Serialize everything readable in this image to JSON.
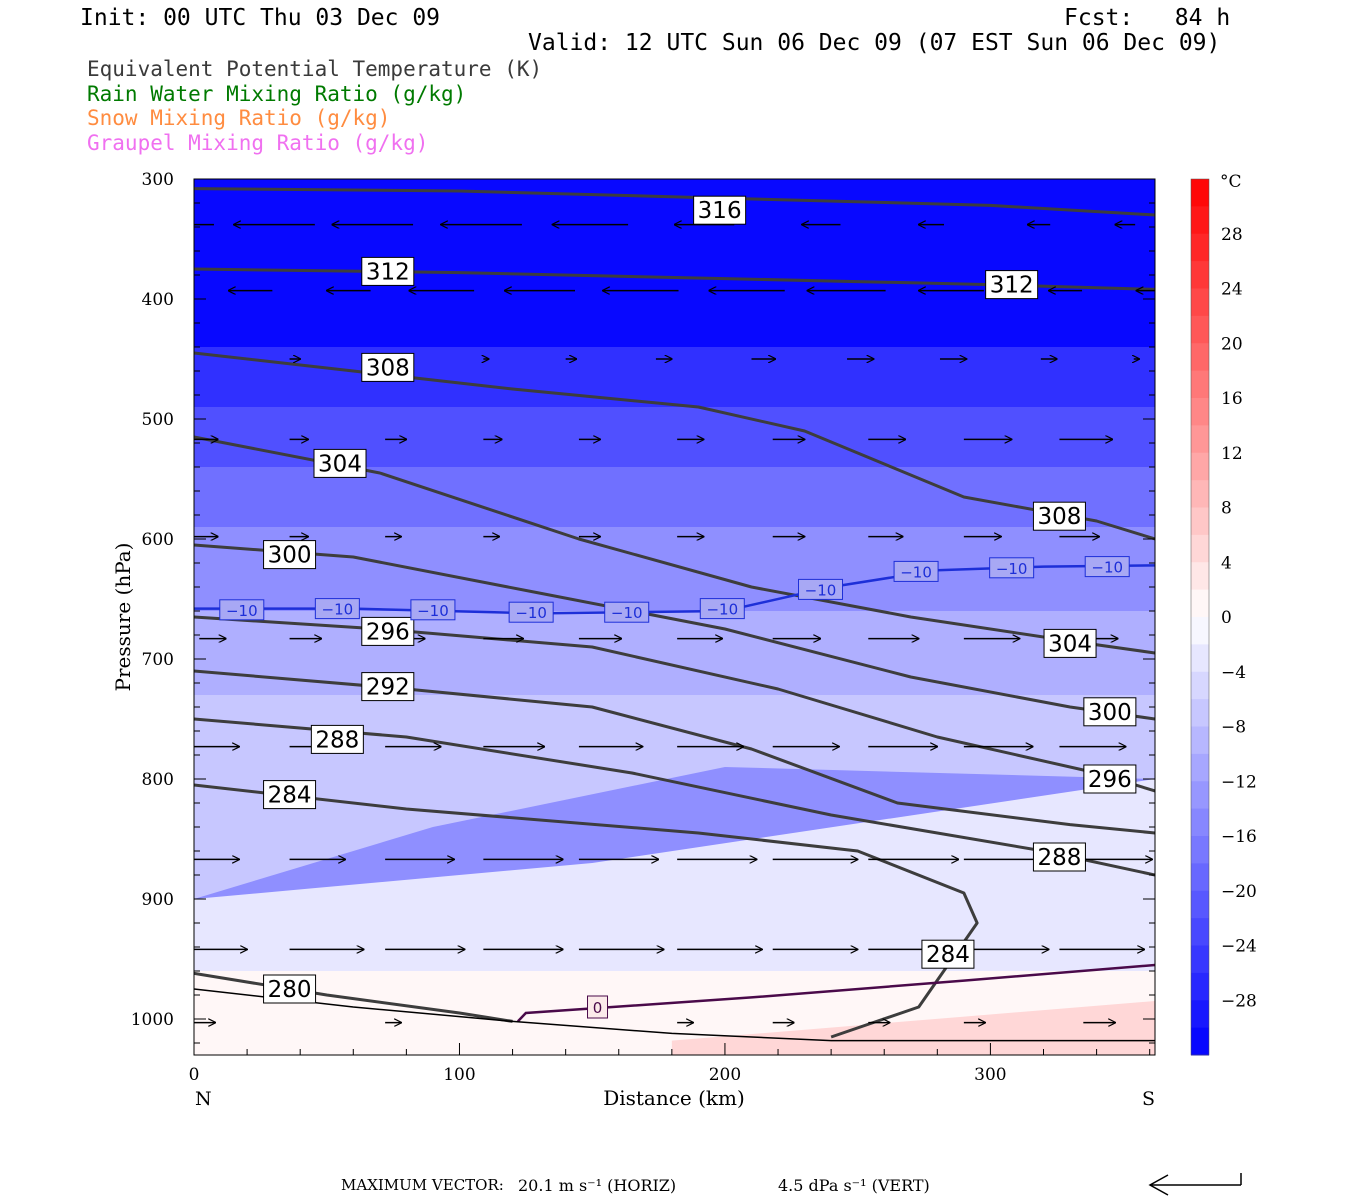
{
  "header": {
    "init": "Init: 00 UTC Thu 03 Dec 09",
    "fcst": "Fcst:   84 h",
    "valid": "Valid: 12 UTC Sun 06 Dec 09 (07 EST Sun 06 Dec 09)"
  },
  "legend": [
    {
      "label": "Equivalent Potential Temperature (K)",
      "color": "#3a3a3a"
    },
    {
      "label": "Rain Water Mixing Ratio (g/kg)",
      "color": "#007a00"
    },
    {
      "label": "Snow Mixing Ratio (g/kg)",
      "color": "#ff8c40"
    },
    {
      "label": "Graupel Mixing Ratio (g/kg)",
      "color": "#f070f0"
    }
  ],
  "footer": {
    "max_vector_label": "MAXIMUM VECTOR:",
    "horiz": "20.1 m s⁻¹ (HORIZ)",
    "vert": "4.5 dPa s⁻¹ (VERT)"
  },
  "chart_data": {
    "type": "cross-section",
    "xlabel": "Distance (km)",
    "ylabel": "Pressure (hPa)",
    "xlim": [
      0,
      362
    ],
    "ylim": [
      1030,
      300
    ],
    "x_ticks": [
      0,
      100,
      200,
      300
    ],
    "y_ticks": [
      300,
      400,
      500,
      600,
      700,
      800,
      900,
      1000
    ],
    "x_end_labels": {
      "left": "N",
      "right": "S"
    },
    "colorbar": {
      "unit": "°C",
      "tick_labels": [
        "28",
        "24",
        "20",
        "16",
        "12",
        "8",
        "4",
        "0",
        "−4",
        "−8",
        "−12",
        "−16",
        "−20",
        "−24",
        "−28"
      ],
      "tick_values": [
        28,
        24,
        20,
        16,
        12,
        8,
        4,
        0,
        -4,
        -8,
        -12,
        -16,
        -20,
        -24,
        -28
      ],
      "range": [
        -32,
        32
      ]
    },
    "temperature_shading": [
      {
        "temp": -31,
        "x": [
          0,
          362,
          362,
          0
        ],
        "p": [
          300,
          300,
          440,
          440
        ]
      },
      {
        "temp": -26,
        "x": [
          0,
          362,
          362,
          0
        ],
        "p": [
          440,
          440,
          490,
          490
        ]
      },
      {
        "temp": -22,
        "x": [
          0,
          362,
          362,
          0
        ],
        "p": [
          490,
          490,
          540,
          540
        ]
      },
      {
        "temp": -18,
        "x": [
          0,
          362,
          362,
          0
        ],
        "p": [
          540,
          540,
          590,
          590
        ]
      },
      {
        "temp": -14,
        "x": [
          0,
          362,
          362,
          0
        ],
        "p": [
          590,
          590,
          660,
          660
        ]
      },
      {
        "temp": -10,
        "x": [
          0,
          362,
          362,
          0
        ],
        "p": [
          660,
          660,
          730,
          730
        ]
      },
      {
        "temp": -7,
        "x": [
          0,
          100,
          190,
          362,
          362,
          200,
          90,
          0
        ],
        "p": [
          730,
          730,
          730,
          730,
          800,
          790,
          840,
          900
        ]
      },
      {
        "temp": -3,
        "x": [
          0,
          150,
          362,
          362,
          0
        ],
        "p": [
          900,
          870,
          800,
          960,
          960
        ]
      },
      {
        "temp": 1,
        "x": [
          0,
          362,
          362,
          0
        ],
        "p": [
          960,
          960,
          1030,
          1030
        ]
      },
      {
        "temp": 5,
        "x": [
          180,
          362,
          362,
          180
        ],
        "p": [
          1018,
          985,
          1030,
          1030
        ]
      }
    ],
    "theta_e": [
      {
        "level": 316,
        "x": [
          0,
          100,
          200,
          300,
          362
        ],
        "p": [
          308,
          310,
          316,
          322,
          330
        ]
      },
      {
        "level": 312,
        "x": [
          0,
          100,
          200,
          300,
          362
        ],
        "p": [
          375,
          378,
          383,
          388,
          392
        ]
      },
      {
        "level": 308,
        "x": [
          0,
          60,
          120,
          190,
          230,
          290,
          340,
          362
        ],
        "p": [
          445,
          460,
          475,
          490,
          510,
          565,
          585,
          600
        ]
      },
      {
        "level": 304,
        "x": [
          0,
          70,
          145,
          210,
          270,
          330,
          362
        ],
        "p": [
          515,
          545,
          600,
          640,
          665,
          685,
          695
        ]
      },
      {
        "level": 300,
        "x": [
          0,
          60,
          130,
          200,
          270,
          330,
          362
        ],
        "p": [
          605,
          615,
          645,
          675,
          715,
          740,
          750
        ]
      },
      {
        "level": 296,
        "x": [
          0,
          70,
          150,
          220,
          280,
          340,
          362
        ],
        "p": [
          665,
          675,
          690,
          725,
          765,
          795,
          810
        ]
      },
      {
        "level": 292,
        "x": [
          0,
          80,
          150,
          210,
          265,
          330,
          362
        ],
        "p": [
          710,
          725,
          740,
          775,
          820,
          838,
          845
        ]
      },
      {
        "level": 288,
        "x": [
          0,
          80,
          165,
          240,
          320,
          362
        ],
        "p": [
          750,
          765,
          795,
          830,
          860,
          880
        ]
      },
      {
        "level": 284,
        "x": [
          0,
          80,
          190,
          250,
          290,
          295,
          273,
          240
        ],
        "p": [
          805,
          825,
          845,
          860,
          895,
          920,
          990,
          1015
        ]
      },
      {
        "level": 280,
        "x": [
          0,
          50,
          100,
          120
        ],
        "p": [
          962,
          980,
          995,
          1002
        ]
      }
    ],
    "theta_e_labels": [
      {
        "text": "316",
        "x": 198,
        "p": 326
      },
      {
        "text": "312",
        "x": 73,
        "p": 377
      },
      {
        "text": "312",
        "x": 308,
        "p": 388
      },
      {
        "text": "308",
        "x": 73,
        "p": 457
      },
      {
        "text": "304",
        "x": 55,
        "p": 537
      },
      {
        "text": "308",
        "x": 326,
        "p": 581
      },
      {
        "text": "300",
        "x": 36,
        "p": 613
      },
      {
        "text": "296",
        "x": 73,
        "p": 677
      },
      {
        "text": "304",
        "x": 330,
        "p": 687
      },
      {
        "text": "292",
        "x": 73,
        "p": 723
      },
      {
        "text": "300",
        "x": 345,
        "p": 744
      },
      {
        "text": "288",
        "x": 54,
        "p": 767
      },
      {
        "text": "296",
        "x": 345,
        "p": 800
      },
      {
        "text": "284",
        "x": 36,
        "p": 813
      },
      {
        "text": "288",
        "x": 326,
        "p": 865
      },
      {
        "text": "284",
        "x": 284,
        "p": 946
      },
      {
        "text": "280",
        "x": 36,
        "p": 975
      }
    ],
    "isotherm_minus10": {
      "x": [
        0,
        60,
        130,
        200,
        240,
        280,
        320,
        362
      ],
      "p": [
        658,
        658,
        662,
        660,
        640,
        626,
        623,
        622
      ]
    },
    "isotherm_minus10_labels": [
      {
        "x": 18,
        "p": 659
      },
      {
        "x": 54,
        "p": 658
      },
      {
        "x": 90,
        "p": 659
      },
      {
        "x": 127,
        "p": 661
      },
      {
        "x": 163,
        "p": 661
      },
      {
        "x": 199,
        "p": 658
      },
      {
        "x": 236,
        "p": 642
      },
      {
        "x": 272,
        "p": 627
      },
      {
        "x": 308,
        "p": 624
      },
      {
        "x": 344,
        "p": 623
      }
    ],
    "isotherm_0": {
      "x": [
        122,
        125,
        210,
        290,
        362
      ],
      "p": [
        1002,
        995,
        982,
        968,
        955
      ]
    },
    "isotherm_0_label": {
      "text": "0",
      "x": 152,
      "p": 990
    },
    "terrain": {
      "x": [
        0,
        60,
        120,
        180,
        240,
        300,
        362
      ],
      "p": [
        975,
        990,
        1002,
        1012,
        1018,
        1018,
        1018
      ]
    },
    "wind_vector_rows": [
      {
        "p": 338,
        "x": [
          3,
          41,
          78,
          119,
          159,
          199,
          239,
          278,
          318,
          350
        ],
        "len": [
          26,
          26,
          26,
          26,
          24,
          18,
          10,
          5,
          4,
          3
        ],
        "dir": "left"
      },
      {
        "p": 393,
        "x": [
          25,
          62,
          101,
          139,
          178,
          218,
          256,
          293,
          330,
          358
        ],
        "len": [
          12,
          12,
          20,
          22,
          24,
          24,
          25,
          20,
          8,
          3
        ],
        "dir": "left"
      },
      {
        "p": 450,
        "x": [
          36,
          109,
          140,
          174,
          210,
          246,
          281,
          319,
          354
        ],
        "len": [
          4,
          2,
          4,
          6,
          9,
          10,
          10,
          6,
          2
        ],
        "dir": "right"
      },
      {
        "p": 517,
        "x": [
          0,
          36,
          72,
          109,
          145,
          182,
          218,
          254,
          290,
          326
        ],
        "len": [
          9,
          7,
          8,
          7,
          8,
          10,
          12,
          14,
          18,
          20
        ],
        "dir": "right"
      },
      {
        "p": 598,
        "x": [
          0,
          36,
          72,
          109,
          145,
          182,
          218,
          254,
          290,
          326
        ],
        "len": [
          9,
          7,
          6,
          6,
          8,
          10,
          12,
          13,
          14,
          15
        ],
        "dir": "right"
      },
      {
        "p": 683,
        "x": [
          2,
          36,
          72,
          109,
          145,
          182,
          218,
          254,
          290,
          326
        ],
        "len": [
          10,
          12,
          15,
          15,
          16,
          17,
          18,
          19,
          21,
          22
        ],
        "dir": "right"
      },
      {
        "p": 773,
        "x": [
          0,
          36,
          72,
          109,
          145,
          182,
          218,
          254,
          290,
          326
        ],
        "len": [
          17,
          18,
          21,
          23,
          24,
          25,
          25,
          26,
          26,
          25
        ],
        "dir": "right"
      },
      {
        "p": 867,
        "x": [
          0,
          36,
          72,
          109,
          145,
          182,
          218,
          254,
          290,
          326
        ],
        "len": [
          17,
          21,
          26,
          30,
          30,
          30,
          32,
          34,
          34,
          35
        ],
        "dir": "right"
      },
      {
        "p": 942,
        "x": [
          0,
          36,
          72,
          109,
          145,
          182,
          218,
          254,
          290,
          326
        ],
        "len": [
          20,
          28,
          30,
          30,
          32,
          32,
          32,
          32,
          32,
          32
        ],
        "dir": "right"
      },
      {
        "p": 1003,
        "x": [
          0,
          72,
          182,
          218,
          254,
          290,
          335
        ],
        "len": [
          8,
          6,
          6,
          8,
          8,
          8,
          12
        ],
        "dir": "right"
      }
    ]
  }
}
